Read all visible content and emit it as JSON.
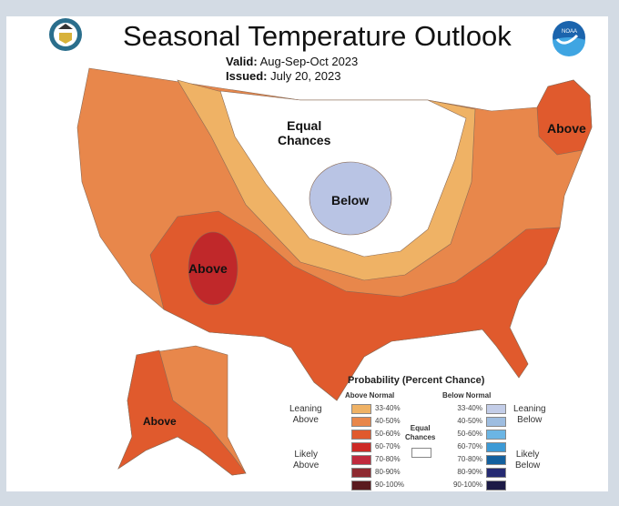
{
  "title": "Seasonal Temperature Outlook",
  "valid_label": "Valid:",
  "valid_value": "Aug-Sep-Oct 2023",
  "issued_label": "Issued:",
  "issued_value": "July 20, 2023",
  "map_labels": {
    "equal": "Equal\nChances",
    "below": "Below",
    "above_sw": "Above",
    "above_ne": "Above",
    "above_ak": "Above"
  },
  "legend": {
    "title": "Probability (Percent Chance)",
    "above_header": "Above Normal",
    "below_header": "Below Normal",
    "leaning_above": "Leaning\nAbove",
    "likely_above": "Likely\nAbove",
    "leaning_below": "Leaning\nBelow",
    "likely_below": "Likely\nBelow",
    "equal": "Equal\nChances",
    "ranges": [
      "33-40%",
      "40-50%",
      "50-60%",
      "60-70%",
      "70-80%",
      "80-90%",
      "90-100%"
    ],
    "above_colors": [
      "#efb265",
      "#e8874b",
      "#e05a2d",
      "#cd2a26",
      "#c02a3e",
      "#8e2a31",
      "#5a1a1e"
    ],
    "below_colors": [
      "#c3cde8",
      "#9ebde0",
      "#6bb5e4",
      "#3c9ad6",
      "#13609e",
      "#252a72",
      "#1c1a46"
    ]
  },
  "logo_text": "NOAA"
}
